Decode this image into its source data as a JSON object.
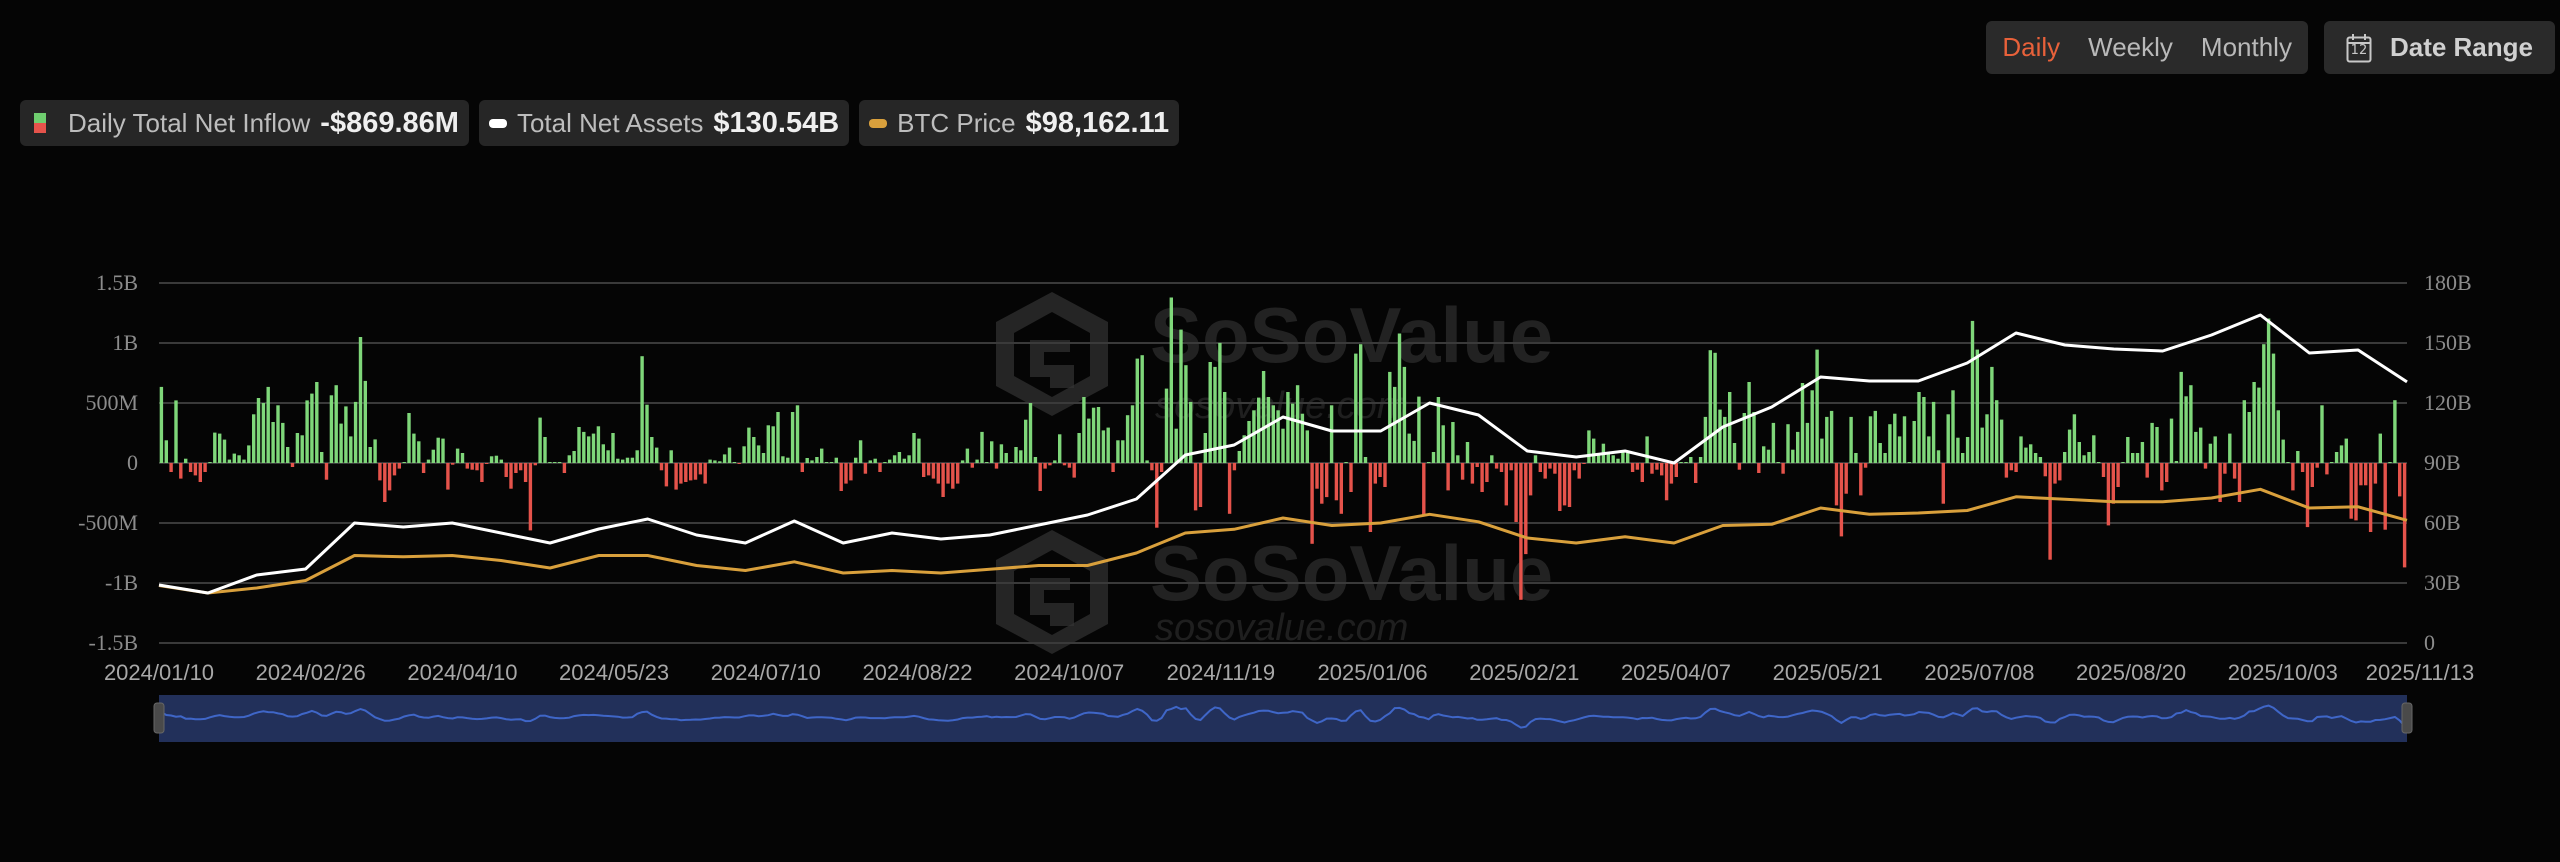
{
  "controls": {
    "period_options": [
      "Daily",
      "Weekly",
      "Monthly"
    ],
    "active_period": "Daily",
    "date_range_label": "Date Range",
    "calendar_day": "12"
  },
  "legend": [
    {
      "label": "Daily Total Net Inflow",
      "value": "-$869.86M"
    },
    {
      "label": "Total Net Assets",
      "value": "$130.54B"
    },
    {
      "label": "BTC Price",
      "value": "$98,162.11"
    }
  ],
  "watermark": {
    "brand": "SoSoValue",
    "url": "sosovalue.com"
  },
  "colors": {
    "inflow_positive": "#7fd77a",
    "inflow_negative": "#e5534b",
    "total_net_assets": "#ffffff",
    "btc_price": "#d9a03c",
    "active_period": "#e8613a",
    "navigator_fill": "#22305a",
    "navigator_line": "#3f66c8"
  },
  "chart_data": {
    "type": "bar+line",
    "grid": true,
    "legend_position": "top-left",
    "x_ticks": [
      "2024/01/10",
      "2024/02/26",
      "2024/04/10",
      "2024/05/23",
      "2024/07/10",
      "2024/08/22",
      "2024/10/07",
      "2024/11/19",
      "2025/01/06",
      "2025/02/21",
      "2025/04/07",
      "2025/05/21",
      "2025/07/08",
      "2025/08/20",
      "2025/10/03",
      "2025/11/13"
    ],
    "left_axis": {
      "ticks": [
        "1.5B",
        "1B",
        "500M",
        "0",
        "-500M",
        "-1B",
        "-1.5B"
      ],
      "range_millions": [
        -1500,
        1500
      ]
    },
    "right_axis": {
      "ticks": [
        "180B",
        "150B",
        "120B",
        "90B",
        "60B",
        "30B",
        "0"
      ],
      "range_billions": [
        0,
        180
      ]
    },
    "btc_axis_range_usd": [
      0,
      288000
    ],
    "series": [
      {
        "name": "Daily Total Net Inflow",
        "type": "bar",
        "unit": "USD millions",
        "axis": "left",
        "values": [
          634,
          189,
          -75,
          522,
          -130,
          36,
          -75,
          -103,
          -158,
          -75,
          8,
          253,
          245,
          195,
          28,
          78,
          64,
          28,
          147,
          406,
          542,
          500,
          634,
          342,
          481,
          334,
          133,
          -33,
          250,
          231,
          522,
          578,
          675,
          92,
          -139,
          564,
          648,
          328,
          472,
          222,
          509,
          1050,
          684,
          133,
          197,
          -145,
          -325,
          -228,
          -103,
          -47,
          8,
          417,
          245,
          181,
          -83,
          28,
          111,
          211,
          203,
          -222,
          -14,
          120,
          83,
          -47,
          -56,
          -61,
          -158,
          -5,
          56,
          61,
          28,
          -117,
          -214,
          -83,
          -61,
          -158,
          -562,
          -19,
          378,
          217,
          5,
          6,
          3,
          -83,
          64,
          100,
          300,
          259,
          222,
          245,
          306,
          156,
          106,
          250,
          36,
          28,
          44,
          44,
          106,
          890,
          486,
          217,
          128,
          -61,
          -195,
          106,
          -222,
          -172,
          -158,
          -145,
          -139,
          -95,
          -172,
          28,
          22,
          14,
          72,
          128,
          2,
          -5,
          139,
          295,
          217,
          147,
          83,
          314,
          306,
          425,
          56,
          44,
          425,
          481,
          -75,
          42,
          22,
          50,
          120,
          2,
          0,
          44,
          -233,
          -172,
          -145,
          44,
          189,
          -89,
          22,
          36,
          -75,
          8,
          28,
          64,
          92,
          36,
          64,
          250,
          203,
          -117,
          -103,
          -130,
          -172,
          -283,
          -172,
          -214,
          -172,
          22,
          120,
          -39,
          28,
          259,
          8,
          181,
          -47,
          156,
          83,
          8,
          133,
          106,
          361,
          500,
          50,
          -233,
          -47,
          -19,
          22,
          239,
          -19,
          -39,
          -122,
          250,
          550,
          370,
          461,
          467,
          272,
          295,
          -75,
          189,
          189,
          398,
          481,
          870,
          898,
          22,
          -61,
          -539,
          -75,
          620,
          1379,
          286,
          1112,
          815,
          509,
          -395,
          -367,
          250,
          842,
          801,
          1001,
          592,
          -423,
          -61,
          100,
          231,
          350,
          439,
          545,
          767,
          550,
          481,
          439,
          286,
          592,
          495,
          648,
          411,
          272,
          -673,
          -214,
          -339,
          -284,
          481,
          -311,
          -423,
          5,
          -242,
          912,
          990,
          50,
          -575,
          -172,
          -117,
          -200,
          759,
          634,
          1079,
          801,
          245,
          184,
          553,
          -436,
          8,
          92,
          550,
          314,
          -228,
          342,
          64,
          -139,
          175,
          -172,
          -33,
          -242,
          -158,
          64,
          -47,
          -75,
          -353,
          -61,
          -492,
          -1140,
          -759,
          -270,
          64,
          -75,
          -130,
          -47,
          -89,
          -400,
          -353,
          -367,
          -61,
          -130,
          -3,
          272,
          203,
          64,
          161,
          92,
          64,
          36,
          92,
          83,
          -75,
          -56,
          -158,
          222,
          -89,
          -56,
          -103,
          -311,
          -172,
          -117,
          3,
          2,
          50,
          -167,
          50,
          384,
          940,
          918,
          445,
          384,
          592,
          167,
          -56,
          417,
          675,
          425,
          -83,
          139,
          111,
          334,
          2,
          -89,
          323,
          111,
          259,
          667,
          334,
          606,
          945,
          203,
          384,
          434,
          -353,
          -612,
          -256,
          384,
          83,
          -270,
          -39,
          389,
          434,
          167,
          83,
          323,
          411,
          222,
          389,
          2,
          350,
          592,
          550,
          222,
          509,
          106,
          -339,
          406,
          606,
          211,
          83,
          217,
          1184,
          945,
          295,
          406,
          801,
          523,
          362,
          -122,
          -61,
          -75,
          222,
          128,
          156,
          83,
          50,
          -111,
          -806,
          -172,
          -145,
          92,
          278,
          406,
          175,
          64,
          92,
          231,
          2,
          -117,
          -520,
          -339,
          -200,
          2,
          217,
          83,
          83,
          175,
          -122,
          334,
          300,
          -228,
          -158,
          370,
          17,
          759,
          556,
          648,
          259,
          295,
          -47,
          161,
          222,
          -325,
          -89,
          245,
          -130,
          -325,
          523,
          425,
          675,
          628,
          990,
          1204,
          912,
          439,
          195,
          2,
          -228,
          100,
          -75,
          -534,
          -200,
          -39,
          481,
          -95,
          2,
          92,
          147,
          203,
          -464,
          -478,
          -186,
          -186,
          -575,
          -172,
          245,
          -556,
          2,
          523,
          -278,
          -869.86
        ]
      },
      {
        "name": "Total Net Assets",
        "type": "line",
        "unit": "USD billions",
        "axis": "right",
        "sampling": "evenly spaced over the date range",
        "values": [
          29,
          25,
          34,
          37,
          60,
          58,
          60,
          55,
          50,
          57,
          62,
          54,
          50,
          61,
          50,
          55,
          52,
          54,
          59,
          64,
          72,
          94,
          99,
          113,
          106,
          106,
          120,
          114,
          96,
          93,
          96,
          90,
          108,
          118,
          133,
          131,
          131,
          140,
          155,
          149,
          147,
          146,
          154,
          164,
          145,
          146.5,
          130.54
        ]
      },
      {
        "name": "BTC Price",
        "type": "line",
        "unit": "USD",
        "axis": "btc",
        "sampling": "evenly spaced over the date range",
        "values": [
          46000,
          40000,
          44000,
          50000,
          70000,
          69000,
          70000,
          66000,
          60000,
          70000,
          70000,
          62000,
          58000,
          65000,
          56000,
          58000,
          56000,
          59000,
          62000,
          62000,
          72000,
          88000,
          91000,
          100000,
          94000,
          96000,
          103000,
          97000,
          84000,
          80000,
          85000,
          80000,
          94000,
          95000,
          108000,
          103000,
          104000,
          106000,
          117000,
          115000,
          113000,
          113000,
          116000,
          123000,
          108000,
          109000,
          98162.11
        ]
      }
    ]
  }
}
